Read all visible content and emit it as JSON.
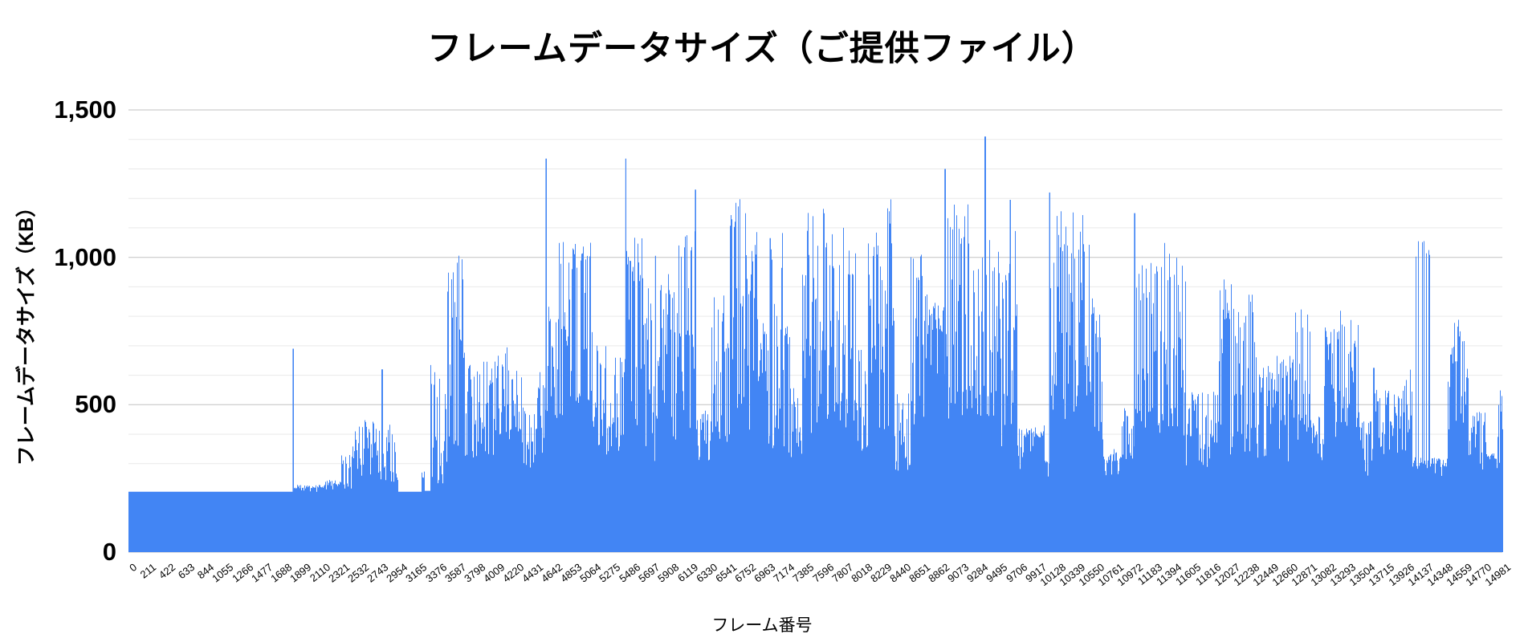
{
  "title": "フレームデータサイズ（ご提供ファイル）",
  "x_axis": {
    "title": "フレーム番号",
    "tick_start": 0,
    "tick_step": 211,
    "tick_end": 14981
  },
  "y_axis": {
    "title": "フレームデータサイズ（KB）",
    "tick_labels": {
      "v0": "0",
      "v500": "500",
      "v1000": "1,000",
      "v1500": "1,500"
    }
  },
  "colors": {
    "bar": "#4285f4",
    "grid_minor": "#e9e9e9",
    "grid_major": "#c2c2c2",
    "background": "#ffffff",
    "text": "#000000"
  },
  "chart_data": {
    "type": "bar",
    "title": "フレームデータサイズ（ご提供ファイル）",
    "xlabel": "フレーム番号",
    "ylabel": "フレームデータサイズ（KB）",
    "x_range": [
      0,
      14981
    ],
    "ylim": [
      0,
      1500
    ],
    "x_tick_step": 211,
    "y_major_step": 500,
    "y_minor_step": 100,
    "grid": true,
    "legend": "none",
    "baseline_kb": 205,
    "max_point": {
      "frame": 9339,
      "value_kb": 1410
    },
    "segments_format": [
      "from_frame",
      "to_frame",
      "mode",
      "low_kb",
      "high_kb"
    ],
    "segments": [
      [
        0,
        1788,
        "flat",
        205,
        205
      ],
      [
        1788,
        1800,
        "spike",
        690,
        690
      ],
      [
        1800,
        2130,
        "dense",
        203,
        228
      ],
      [
        2130,
        2320,
        "dense",
        203,
        245
      ],
      [
        2320,
        2430,
        "spiky",
        215,
        340
      ],
      [
        2430,
        2758,
        "spiky",
        240,
        455
      ],
      [
        2758,
        2770,
        "spike",
        620,
        620
      ],
      [
        2770,
        2940,
        "spiky",
        235,
        440
      ],
      [
        2940,
        3190,
        "flat",
        205,
        205
      ],
      [
        3190,
        3230,
        "dense",
        210,
        285
      ],
      [
        3230,
        3290,
        "flat",
        208,
        208
      ],
      [
        3290,
        3340,
        "spiky",
        220,
        660
      ],
      [
        3340,
        3455,
        "spiky",
        230,
        620
      ],
      [
        3455,
        3650,
        "spiky",
        280,
        1020
      ],
      [
        3650,
        3840,
        "spiky",
        300,
        680
      ],
      [
        3840,
        4000,
        "spiky",
        310,
        650
      ],
      [
        4000,
        4130,
        "spiky",
        380,
        700
      ],
      [
        4130,
        4285,
        "spiky",
        380,
        620
      ],
      [
        4285,
        4425,
        "spiky",
        280,
        500
      ],
      [
        4425,
        4546,
        "spiky",
        330,
        620
      ],
      [
        4546,
        4558,
        "spike",
        1335,
        1335
      ],
      [
        4558,
        4690,
        "spiky",
        380,
        890
      ],
      [
        4690,
        4930,
        "spiky",
        450,
        1075
      ],
      [
        4930,
        5080,
        "spiky",
        420,
        1100
      ],
      [
        5080,
        5250,
        "spiky",
        320,
        720
      ],
      [
        5250,
        5416,
        "spiky",
        330,
        680
      ],
      [
        5416,
        5428,
        "spike",
        1335,
        1335
      ],
      [
        5428,
        5605,
        "spiky",
        420,
        1085
      ],
      [
        5605,
        5705,
        "spiky",
        330,
        900
      ],
      [
        5705,
        5740,
        "spiky",
        300,
        600
      ],
      [
        5740,
        5752,
        "spike",
        1005,
        1005
      ],
      [
        5752,
        5990,
        "spiky",
        350,
        950
      ],
      [
        5990,
        6175,
        "spiky",
        420,
        1145
      ],
      [
        6175,
        6187,
        "spike",
        1230,
        1230
      ],
      [
        6187,
        6350,
        "spiky",
        290,
        480
      ],
      [
        6350,
        6550,
        "spiky",
        360,
        895
      ],
      [
        6550,
        6720,
        "spiky",
        420,
        1200
      ],
      [
        6720,
        6860,
        "spiky",
        400,
        1175
      ],
      [
        6860,
        6990,
        "spiky",
        330,
        790
      ],
      [
        6990,
        7002,
        "spike",
        1065,
        1065
      ],
      [
        7002,
        7130,
        "spiky",
        350,
        1110
      ],
      [
        7130,
        7220,
        "spiky",
        330,
        800
      ],
      [
        7220,
        7330,
        "spiky",
        290,
        560
      ],
      [
        7330,
        7395,
        "spiky",
        320,
        1090
      ],
      [
        7395,
        7620,
        "spiky",
        400,
        1175
      ],
      [
        7620,
        7940,
        "spiky",
        420,
        1105
      ],
      [
        7940,
        8060,
        "spiky",
        300,
        700
      ],
      [
        8060,
        8205,
        "spiky",
        380,
        1095
      ],
      [
        8205,
        8350,
        "spiky",
        400,
        1225
      ],
      [
        8350,
        8520,
        "spiky",
        270,
        545
      ],
      [
        8520,
        8685,
        "spiky",
        430,
        1045
      ],
      [
        8685,
        8870,
        "dense",
        600,
        875
      ],
      [
        8870,
        8896,
        "spiky",
        500,
        900
      ],
      [
        8896,
        8908,
        "spike",
        1300,
        1300
      ],
      [
        8908,
        9020,
        "spiky",
        450,
        1180
      ],
      [
        9020,
        9190,
        "spiky",
        450,
        1190
      ],
      [
        9190,
        9333,
        "spiky",
        450,
        1075
      ],
      [
        9333,
        9345,
        "spike",
        1410,
        1410
      ],
      [
        9345,
        9490,
        "spiky",
        450,
        1100
      ],
      [
        9490,
        9608,
        "spiky",
        340,
        1000
      ],
      [
        9608,
        9620,
        "spike",
        1195,
        1195
      ],
      [
        9620,
        9690,
        "spiky",
        400,
        1130
      ],
      [
        9690,
        9755,
        "spiky",
        280,
        420
      ],
      [
        9755,
        9985,
        "dense",
        335,
        430
      ],
      [
        9985,
        10038,
        "dense",
        250,
        320
      ],
      [
        10038,
        10050,
        "spike",
        1220,
        1220
      ],
      [
        10050,
        10157,
        "spiky",
        480,
        1145
      ],
      [
        10157,
        10485,
        "spiky",
        450,
        1165
      ],
      [
        10485,
        10625,
        "spiky",
        380,
        900
      ],
      [
        10625,
        10830,
        "dense",
        255,
        350
      ],
      [
        10830,
        10963,
        "spiky",
        300,
        490
      ],
      [
        10963,
        10975,
        "spike",
        1150,
        1150
      ],
      [
        10975,
        11095,
        "spiky",
        400,
        1000
      ],
      [
        11095,
        11155,
        "spiky",
        380,
        1020
      ],
      [
        11155,
        11325,
        "spiky",
        380,
        1080
      ],
      [
        11325,
        11530,
        "spiky",
        380,
        1015
      ],
      [
        11530,
        11590,
        "spiky",
        270,
        490
      ],
      [
        11590,
        11795,
        "spiky",
        280,
        545
      ],
      [
        11795,
        11880,
        "spiky",
        350,
        580
      ],
      [
        11880,
        12080,
        "spiky",
        330,
        930
      ],
      [
        12080,
        12285,
        "spiky",
        330,
        900
      ],
      [
        12285,
        12490,
        "spiky",
        320,
        665
      ],
      [
        12490,
        12696,
        "spiky",
        300,
        680
      ],
      [
        12696,
        12886,
        "spiky",
        380,
        840
      ],
      [
        12886,
        13032,
        "spiky",
        290,
        465
      ],
      [
        13032,
        13207,
        "spiky",
        380,
        770
      ],
      [
        13207,
        13425,
        "spiky",
        420,
        845
      ],
      [
        13425,
        13570,
        "spiky",
        255,
        445
      ],
      [
        13570,
        13582,
        "spike",
        625,
        625
      ],
      [
        13582,
        13755,
        "spiky",
        330,
        555
      ],
      [
        13755,
        13930,
        "spiky",
        330,
        580
      ],
      [
        13930,
        14000,
        "spiky",
        380,
        650
      ],
      [
        14000,
        14190,
        "sparse",
        280,
        1065
      ],
      [
        14190,
        14380,
        "dense",
        255,
        320
      ],
      [
        14380,
        14455,
        "spiky",
        380,
        705
      ],
      [
        14455,
        14570,
        "spiky",
        400,
        790
      ],
      [
        14570,
        14690,
        "spiky",
        320,
        645
      ],
      [
        14690,
        14805,
        "spiky",
        280,
        480
      ],
      [
        14805,
        14920,
        "dense",
        280,
        345
      ],
      [
        14920,
        14981,
        "spiky",
        300,
        555
      ]
    ]
  }
}
